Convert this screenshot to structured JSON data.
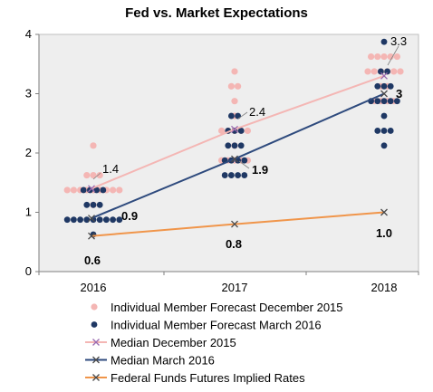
{
  "chart_data": {
    "type": "scatter",
    "title": "Fed vs. Market Expectations",
    "xlabel": "",
    "ylabel": "",
    "categories": [
      "2016",
      "2017",
      "2018"
    ],
    "ylim": [
      0,
      4
    ],
    "yticks": [
      "0",
      "1",
      "2",
      "3",
      "4"
    ],
    "grid": false,
    "legend_position": "bottom",
    "colors": {
      "dec2015_dots": "#f4b6b4",
      "mar2016_dots": "#1f3864",
      "median_dec2015_line": "#f4b6b4",
      "median_dec2015_marker": "#9b6bb0",
      "median_mar2016_line": "#2e4a7d",
      "median_mar2016_marker": "#4a4a4a",
      "futures_line": "#f0954a",
      "futures_marker": "#4a4a4a",
      "axis": "#7f7f7f",
      "plot_border": "#bfbfbf",
      "plot_bg": "#eeeeee"
    },
    "dot_series": [
      {
        "name": "Individual Member Forecast December 2015",
        "points": [
          {
            "x": "2016",
            "y": 2.125,
            "count": 1
          },
          {
            "x": "2016",
            "y": 1.625,
            "count": 3
          },
          {
            "x": "2016",
            "y": 1.375,
            "count": 9
          },
          {
            "x": "2016",
            "y": 1.125,
            "count": 1
          },
          {
            "x": "2017",
            "y": 3.375,
            "count": 1
          },
          {
            "x": "2017",
            "y": 3.125,
            "count": 2
          },
          {
            "x": "2017",
            "y": 2.875,
            "count": 1
          },
          {
            "x": "2017",
            "y": 2.625,
            "count": 1
          },
          {
            "x": "2017",
            "y": 2.375,
            "count": 5
          },
          {
            "x": "2017",
            "y": 2.125,
            "count": 1
          },
          {
            "x": "2017",
            "y": 1.875,
            "count": 5
          },
          {
            "x": "2018",
            "y": 3.625,
            "count": 5
          },
          {
            "x": "2018",
            "y": 3.375,
            "count": 6
          },
          {
            "x": "2018",
            "y": 3.125,
            "count": 2
          },
          {
            "x": "2018",
            "y": 2.875,
            "count": 4
          }
        ]
      },
      {
        "name": "Individual Member Forecast March 2016",
        "points": [
          {
            "x": "2016",
            "y": 1.375,
            "count": 4
          },
          {
            "x": "2016",
            "y": 1.125,
            "count": 3
          },
          {
            "x": "2016",
            "y": 0.875,
            "count": 9
          },
          {
            "x": "2016",
            "y": 0.625,
            "count": 1
          },
          {
            "x": "2017",
            "y": 2.625,
            "count": 2
          },
          {
            "x": "2017",
            "y": 2.375,
            "count": 3
          },
          {
            "x": "2017",
            "y": 2.125,
            "count": 3
          },
          {
            "x": "2017",
            "y": 1.875,
            "count": 4
          },
          {
            "x": "2017",
            "y": 1.625,
            "count": 4
          },
          {
            "x": "2018",
            "y": 3.875,
            "count": 1
          },
          {
            "x": "2018",
            "y": 3.375,
            "count": 2
          },
          {
            "x": "2018",
            "y": 3.125,
            "count": 3
          },
          {
            "x": "2018",
            "y": 2.875,
            "count": 5
          },
          {
            "x": "2018",
            "y": 2.625,
            "count": 1
          },
          {
            "x": "2018",
            "y": 2.375,
            "count": 3
          },
          {
            "x": "2018",
            "y": 2.125,
            "count": 1
          }
        ]
      }
    ],
    "line_series": [
      {
        "name": "Median December 2015",
        "values": [
          1.4,
          2.4,
          3.3
        ],
        "labels": [
          "1.4",
          "2.4",
          "3.3"
        ]
      },
      {
        "name": "Median March 2016",
        "values": [
          0.9,
          1.9,
          3.0
        ],
        "labels": [
          "0.9",
          "1.9",
          "3"
        ]
      },
      {
        "name": "Federal Funds Futures Implied Rates",
        "values": [
          0.6,
          0.8,
          1.0
        ],
        "labels": [
          "0.6",
          "0.8",
          "1.0"
        ]
      }
    ]
  }
}
